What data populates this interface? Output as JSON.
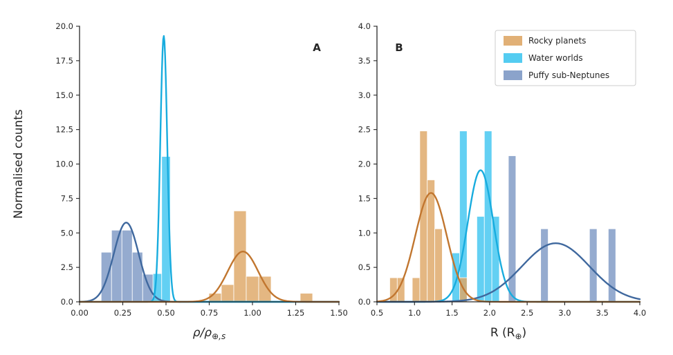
{
  "figure": {
    "background": "#ffffff",
    "ylabel": "Normalised counts",
    "colors": {
      "rocky_bar": "#DEA767",
      "rocky_line": "#C1762F",
      "water_bar": "#41C6F0",
      "water_line": "#18ACDE",
      "puffy_bar": "#7E99C5",
      "puffy_line": "#3F689E"
    },
    "legend": {
      "items": [
        {
          "label": "Rocky planets",
          "key": "rocky"
        },
        {
          "label": "Water worlds",
          "key": "water"
        },
        {
          "label": "Puffy sub-Neptunes",
          "key": "puffy"
        }
      ]
    }
  },
  "chart_data": [
    {
      "type": "bar",
      "subtype": "histogram-with-gaussian-fit",
      "panel_label": "A",
      "label_side": "right",
      "xlabel_text": "ρ/ρ⊕,s",
      "xlabel": [
        {
          "t": "ρ/ρ",
          "italic": true
        },
        {
          "t": "⊕,s",
          "sub": true,
          "italic": true
        }
      ],
      "xlim": [
        0,
        1.5
      ],
      "ylim": [
        0,
        20
      ],
      "grid": false,
      "xticks": [
        0,
        0.25,
        0.5,
        0.75,
        1.0,
        1.25,
        1.5
      ],
      "xtick_labels": [
        "0.00",
        "0.25",
        "0.50",
        "0.75",
        "1.00",
        "1.25",
        "1.50"
      ],
      "yticks": [
        0,
        2.5,
        5,
        7.5,
        10,
        12.5,
        15,
        17.5,
        20
      ],
      "ytick_labels": [
        "0.0",
        "2.5",
        "5.0",
        "7.5",
        "10.0",
        "12.5",
        "15.0",
        "17.5",
        "20.0"
      ],
      "series": [
        {
          "key": "puffy",
          "name": "Puffy sub-Neptunes",
          "bars": [
            [
              0.125,
              0.06,
              3.6
            ],
            [
              0.185,
              0.06,
              5.2
            ],
            [
              0.245,
              0.06,
              5.2
            ],
            [
              0.305,
              0.06,
              3.6
            ],
            [
              0.365,
              0.06,
              2.0
            ]
          ],
          "gauss": {
            "mu": 0.27,
            "sigma": 0.072,
            "amp": 5.75
          }
        },
        {
          "key": "water",
          "name": "Water worlds",
          "bars": [
            [
              0.425,
              0.05,
              2.05
            ],
            [
              0.475,
              0.05,
              10.55
            ]
          ],
          "gauss": {
            "mu": 0.487,
            "sigma": 0.02,
            "amp": 19.3
          }
        },
        {
          "key": "rocky",
          "name": "Rocky planets",
          "bars": [
            [
              0.748,
              0.072,
              0.62
            ],
            [
              0.82,
              0.072,
              1.25
            ],
            [
              0.892,
              0.072,
              6.6
            ],
            [
              0.964,
              0.072,
              1.85
            ],
            [
              1.036,
              0.072,
              1.85
            ],
            [
              1.276,
              0.072,
              0.62
            ]
          ],
          "gauss": {
            "mu": 0.945,
            "sigma": 0.088,
            "amp": 3.65
          }
        }
      ]
    },
    {
      "type": "bar",
      "subtype": "histogram-with-gaussian-fit",
      "panel_label": "B",
      "label_side": "left",
      "xlabel_text": "R (R⊕)",
      "xlabel": [
        {
          "t": "R (R"
        },
        {
          "t": "⊕",
          "sub": true
        },
        {
          "t": ")"
        }
      ],
      "xlim": [
        0.5,
        4
      ],
      "ylim": [
        0,
        4
      ],
      "grid": false,
      "xticks": [
        0.5,
        1,
        1.5,
        2,
        2.5,
        3,
        3.5,
        4
      ],
      "xtick_labels": [
        "0.5",
        "1.0",
        "1.5",
        "2.0",
        "2.5",
        "3.0",
        "3.5",
        "4.0"
      ],
      "yticks": [
        0,
        0.5,
        1,
        1.5,
        2,
        2.5,
        3,
        3.5,
        4
      ],
      "ytick_labels": [
        "0.0",
        "0.5",
        "1.0",
        "1.5",
        "2.0",
        "2.5",
        "3.0",
        "3.5",
        "4.0"
      ],
      "series": [
        {
          "key": "water",
          "name": "Water worlds",
          "bars": [
            [
              1.5,
              0.1,
              0.71
            ],
            [
              1.6,
              0.1,
              2.48
            ],
            [
              1.83,
              0.1,
              1.24
            ],
            [
              1.93,
              0.1,
              2.48
            ],
            [
              2.03,
              0.1,
              1.24
            ]
          ],
          "gauss": {
            "mu": 1.88,
            "sigma": 0.17,
            "amp": 1.91
          }
        },
        {
          "key": "puffy",
          "name": "Puffy sub-Neptunes",
          "bars": [
            [
              2.25,
              0.1,
              2.12
            ],
            [
              2.68,
              0.1,
              1.06
            ],
            [
              3.33,
              0.1,
              1.06
            ],
            [
              3.58,
              0.1,
              1.06
            ]
          ],
          "gauss": {
            "mu": 2.88,
            "sigma": 0.45,
            "amp": 0.85
          }
        },
        {
          "key": "rocky",
          "name": "Rocky planets",
          "bars": [
            [
              0.67,
              0.1,
              0.35
            ],
            [
              0.77,
              0.1,
              0.35
            ],
            [
              0.97,
              0.1,
              0.35
            ],
            [
              1.07,
              0.1,
              2.48
            ],
            [
              1.17,
              0.1,
              1.77
            ],
            [
              1.27,
              0.1,
              1.06
            ],
            [
              1.6,
              0.1,
              0.35
            ]
          ],
          "gauss": {
            "mu": 1.22,
            "sigma": 0.21,
            "amp": 1.58
          }
        }
      ]
    }
  ]
}
